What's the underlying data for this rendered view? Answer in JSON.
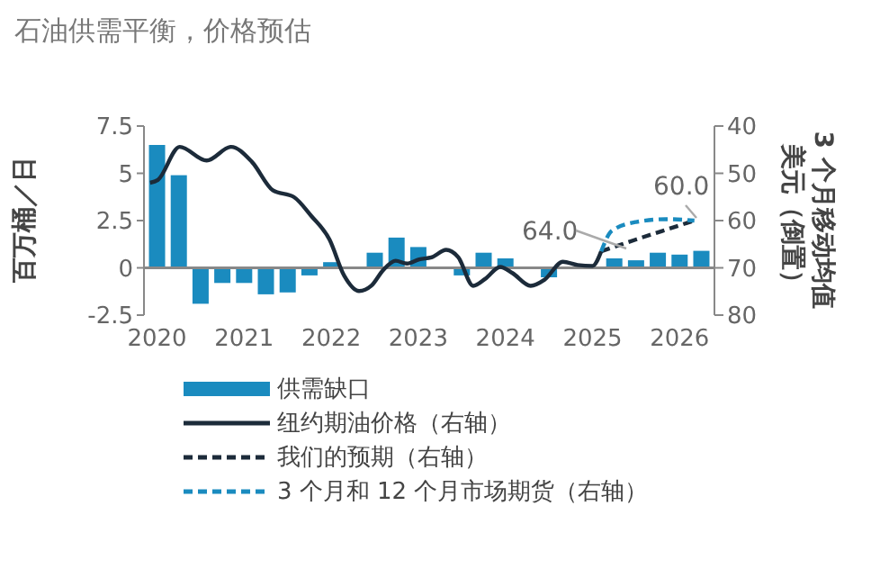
{
  "chart_data": {
    "type": "bar",
    "title": "石油供需平衡，价格预估",
    "ylabel": "百万桶／日",
    "y2label": "3 个月移动均值美元（倒置）",
    "xlim": [
      2019.85,
      2026.4
    ],
    "xticks": [
      2020,
      2021,
      2022,
      2023,
      2024,
      2025,
      2026
    ],
    "ylim": [
      -2.5,
      7.5
    ],
    "yticks": [
      -2.5,
      0,
      2.5,
      5,
      7.5
    ],
    "y2lim": [
      80,
      40
    ],
    "y2ticks": [
      40,
      50,
      60,
      70,
      80
    ],
    "legend": "bottom",
    "annotations": [
      "64.0",
      "60.0"
    ],
    "series": [
      {
        "name": "供需缺口",
        "color": "#1a8bbf",
        "x": [
          2020,
          2020.25,
          2020.5,
          2020.75,
          2021,
          2021.25,
          2021.5,
          2021.75,
          2022,
          2022.25,
          2022.5,
          2022.75,
          2023,
          2023.25,
          2023.5,
          2023.75,
          2024,
          2024.25,
          2024.5,
          2024.75,
          2025,
          2025.25,
          2025.5,
          2025.75,
          2026,
          2026.25
        ],
        "values": [
          6.5,
          4.9,
          -1.9,
          -0.8,
          -0.8,
          -1.4,
          -1.3,
          -0.4,
          0.3,
          null,
          0.8,
          1.6,
          1.1,
          null,
          -0.4,
          0.8,
          0.5,
          null,
          -0.5,
          null,
          null,
          0.5,
          0.4,
          0.8,
          0.7,
          0.9
        ]
      },
      {
        "name": "纽约期油价格（右轴）",
        "type": "line",
        "axis": "y2",
        "color": "#1c2b3a",
        "line_style": "solid",
        "x": [
          2019.92,
          2020.01,
          2020.26,
          2020.57,
          2020.85,
          2021.09,
          2021.33,
          2021.57,
          2021.77,
          2021.98,
          2022.15,
          2022.32,
          2022.46,
          2022.6,
          2022.74,
          2022.87,
          2023.01,
          2023.15,
          2023.32,
          2023.46,
          2023.63,
          2023.77,
          2023.94,
          2024.08,
          2024.29,
          2024.45,
          2024.66,
          2024.83,
          2025.0,
          2025.1
        ],
        "values": [
          52.0,
          51.4,
          44.4,
          47.3,
          44.4,
          47.6,
          53.6,
          55.0,
          59.0,
          64.0,
          71.7,
          74.9,
          73.8,
          70.4,
          68.5,
          69.1,
          68.2,
          67.8,
          66.2,
          67.8,
          73.8,
          72.3,
          69.8,
          71.1,
          73.8,
          72.5,
          68.7,
          69.4,
          69.6,
          66.5
        ]
      },
      {
        "name": "我们的预期（右轴）",
        "type": "line",
        "axis": "y2",
        "color": "#1c2b3a",
        "line_style": "dashed",
        "x": [
          2025.1,
          2025.5,
          2025.8,
          2026.17
        ],
        "values": [
          66.5,
          64.0,
          62.2,
          60.0
        ]
      },
      {
        "name": "3 个月和 12 个月市场期货（右轴）",
        "type": "line",
        "axis": "y2",
        "color": "#1a8bbf",
        "line_style": "dashed",
        "x": [
          2025.1,
          2025.22,
          2025.5,
          2025.84,
          2026.17
        ],
        "values": [
          66.5,
          62.2,
          60.3,
          59.7,
          60.0
        ]
      }
    ]
  }
}
